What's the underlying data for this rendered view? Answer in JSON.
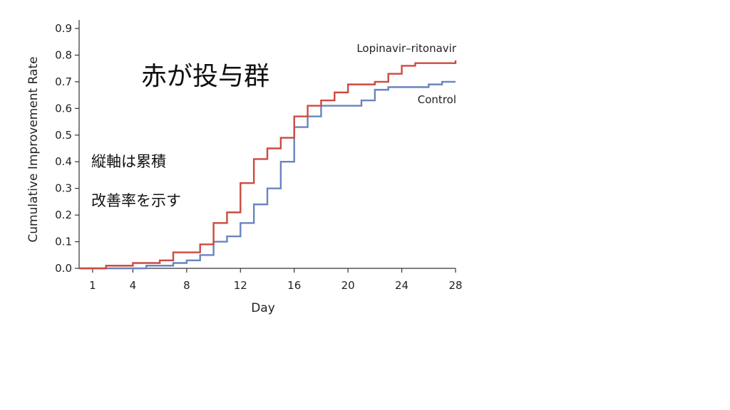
{
  "annotations": {
    "title_note": "赤が投与群",
    "note_line1": "縦軸は累積",
    "note_line2": "改善率を示す"
  },
  "chart_data": {
    "type": "line",
    "step": true,
    "xlabel": "Day",
    "ylabel": "Cumulative Improvement Rate",
    "xlim": [
      0,
      28
    ],
    "ylim": [
      0,
      0.9
    ],
    "x_ticks": [
      1,
      4,
      8,
      12,
      16,
      20,
      24,
      28
    ],
    "y_ticks": [
      0.0,
      0.1,
      0.2,
      0.3,
      0.4,
      0.5,
      0.6,
      0.7,
      0.8,
      0.9
    ],
    "grid": false,
    "series": [
      {
        "name": "Lopinavir–ritonavir",
        "color": "#cc4a3f",
        "x": [
          0,
          2,
          4,
          6,
          7,
          9,
          10,
          11,
          12,
          13,
          14,
          15,
          16,
          17,
          18,
          19,
          20,
          22,
          23,
          24,
          25,
          28
        ],
        "y": [
          0.0,
          0.01,
          0.02,
          0.03,
          0.06,
          0.09,
          0.17,
          0.21,
          0.32,
          0.41,
          0.45,
          0.49,
          0.57,
          0.61,
          0.63,
          0.66,
          0.69,
          0.7,
          0.73,
          0.76,
          0.77,
          0.78
        ]
      },
      {
        "name": "Control",
        "color": "#6a84bf",
        "x": [
          0,
          3,
          5,
          7,
          8,
          9,
          10,
          11,
          12,
          13,
          14,
          15,
          16,
          17,
          18,
          21,
          22,
          23,
          26,
          27,
          28
        ],
        "y": [
          0.0,
          0.0,
          0.01,
          0.02,
          0.03,
          0.05,
          0.1,
          0.12,
          0.17,
          0.24,
          0.3,
          0.4,
          0.53,
          0.57,
          0.61,
          0.63,
          0.67,
          0.68,
          0.69,
          0.7,
          0.7
        ]
      }
    ]
  }
}
